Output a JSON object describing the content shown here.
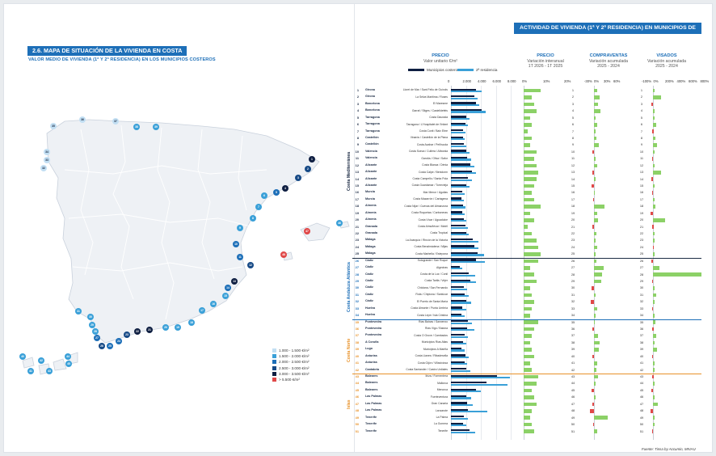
{
  "left_page": {
    "section_title": "2.6. MAPA DE SITUACIÓN DE LA VIVIENDA EN COSTA",
    "section_subtitle": "VALOR MEDIO DE VIVIENDA (1ª Y 2ª RESIDENCIA) EN LOS MUNICIPIOS COSTEROS",
    "map_legend": [
      {
        "label": "1.000 - 1.500 €/m²",
        "color": "#c2dff3"
      },
      {
        "label": "1.500 - 2.000 €/m²",
        "color": "#3aa0d8"
      },
      {
        "label": "2.000 - 2.500 €/m²",
        "color": "#1d6fb8"
      },
      {
        "label": "2.500 - 3.000 €/m²",
        "color": "#174a86"
      },
      {
        "label": "3.000 - 3.500 €/m²",
        "color": "#0f1f42"
      },
      {
        "label": "> 5.500 €/m²",
        "color": "#e04848"
      }
    ]
  },
  "right_page": {
    "title": "ACTIVIDAD DE VIVIENDA (1ª Y 2ª RESIDENCIA) EN MUNICIPIOS DE COSTA",
    "columns": {
      "precio": {
        "title": "PRECIO",
        "subtitle": "Valor unitario €/m²"
      },
      "precio_var": {
        "title": "PRECIO",
        "subtitle": "Variación interanual",
        "period": "1T 2026 - 1T 2025"
      },
      "compraventas": {
        "title": "COMPRAVENTAS",
        "subtitle": "Variación acumulada",
        "period": "2025 - 2024"
      },
      "visados": {
        "title": "VISADOS",
        "subtitle": "Variación acumulada",
        "period": "2025 - 2024"
      }
    },
    "legend": {
      "series1": "Municipios costeros",
      "series2": "2ª residencia"
    },
    "axes": {
      "precio": [
        "0",
        "2.000",
        "4.000",
        "6.000",
        "8.000"
      ],
      "precio_var": [
        "0%",
        "10%",
        "20%"
      ],
      "compraventas": [
        "-30%",
        "0%",
        "30%",
        "60%"
      ],
      "visados": [
        "-100%",
        "0%",
        "200%",
        "400%",
        "600%",
        "800%"
      ]
    },
    "regions": [
      {
        "name": "Costa Mediterránea",
        "color": "#1c2b44"
      },
      {
        "name": "Costa Andaluza Atlántica",
        "color": "#1d6fb8"
      },
      {
        "name": "Costa Norte",
        "color": "#e8922a"
      },
      {
        "name": "Islas",
        "color": "#e8922a"
      }
    ],
    "source": "Fuente: Tinsa by Accumin, MIVAU"
  },
  "chart_data": {
    "type": "bar",
    "rows": [
      {
        "n": 1,
        "prov": "Girona",
        "mun": "Lloret de Mar / Sant Feliu de Guíxols",
        "p1": 3400,
        "p2": 4100,
        "pv": 8,
        "cv": 6,
        "vis": 10
      },
      {
        "n": 2,
        "prov": "Girona",
        "mun": "La Selva Marítima / Roses",
        "p1": 3100,
        "p2": 3600,
        "pv": 4,
        "cv": 12,
        "vis": 130
      },
      {
        "n": 3,
        "prov": "Barcelona",
        "mun": "El Maresme",
        "p1": 3300,
        "p2": 3800,
        "pv": 5,
        "cv": 8,
        "vis": -30
      },
      {
        "n": 4,
        "prov": "Barcelona",
        "mun": "Garraf / Sitges / Castelldefels",
        "p1": 4100,
        "p2": 4600,
        "pv": 6,
        "cv": 14,
        "vis": 25
      },
      {
        "n": 5,
        "prov": "Tarragona",
        "mun": "Costa Daurada",
        "p1": 2100,
        "p2": 2500,
        "pv": 3,
        "cv": 4,
        "vis": 8
      },
      {
        "n": 6,
        "prov": "Tarragona",
        "mun": "Tarragona / L'Hospitalet de l'Infant",
        "p1": 1900,
        "p2": 2300,
        "pv": 4,
        "cv": 7,
        "vis": 60
      },
      {
        "n": 7,
        "prov": "Tarragona",
        "mun": "Costa Cunit / Baix Ebre",
        "p1": 1600,
        "p2": 1900,
        "pv": 2,
        "cv": 3,
        "vis": -10
      },
      {
        "n": 8,
        "prov": "Castellón",
        "mun": "Vinaròs / Castellón de la Plana",
        "p1": 1600,
        "p2": 1800,
        "pv": 4,
        "cv": 5,
        "vis": 40
      },
      {
        "n": 9,
        "prov": "Castellón",
        "mun": "Costa Azahar / Peñíscola",
        "p1": 1700,
        "p2": 2000,
        "pv": 3,
        "cv": 10,
        "vis": 70
      },
      {
        "n": 10,
        "prov": "Valencia",
        "mun": "Costa Sueca / Cullera / Alboraia",
        "p1": 2000,
        "p2": 2500,
        "pv": 6,
        "cv": -3,
        "vis": 20
      },
      {
        "n": 11,
        "prov": "Valencia",
        "mun": "Gandía / Oliva / Safor",
        "p1": 2200,
        "p2": 2700,
        "pv": 5,
        "cv": 4,
        "vis": -20
      },
      {
        "n": 12,
        "prov": "Alicante",
        "mun": "Costa Blanca / Dénia",
        "p1": 2600,
        "p2": 3100,
        "pv": 6,
        "cv": 6,
        "vis": 15
      },
      {
        "n": 13,
        "prov": "Alicante",
        "mun": "Costa Calpe / Benidorm",
        "p1": 2800,
        "p2": 3300,
        "pv": 7,
        "cv": -4,
        "vis": 140
      },
      {
        "n": 14,
        "prov": "Alicante",
        "mun": "Costa Campello / Santa Pola",
        "p1": 2300,
        "p2": 2800,
        "pv": 6,
        "cv": 3,
        "vis": -25
      },
      {
        "n": 15,
        "prov": "Alicante",
        "mun": "Costa Guardamar / Torrevieja",
        "p1": 2000,
        "p2": 2500,
        "pv": 5,
        "cv": -5,
        "vis": 30
      },
      {
        "n": 16,
        "prov": "Murcia",
        "mun": "Mar Menor / Águilas",
        "p1": 1500,
        "p2": 1800,
        "pv": 4,
        "cv": 2,
        "vis": -15
      },
      {
        "n": 17,
        "prov": "Murcia",
        "mun": "Costa Mazarrón / Cartagena",
        "p1": 1400,
        "p2": 1700,
        "pv": 5,
        "cv": -2,
        "vis": 5
      },
      {
        "n": 18,
        "prov": "Almería",
        "mun": "Costa Níjar / Cuevas del Almanzora",
        "p1": 1600,
        "p2": 1900,
        "pv": 8,
        "cv": 22,
        "vis": 35
      },
      {
        "n": 19,
        "prov": "Almería",
        "mun": "Costa Roquetas / Carboneras",
        "p1": 1500,
        "p2": 1800,
        "pv": 3,
        "cv": 6,
        "vis": -40
      },
      {
        "n": 20,
        "prov": "Almería",
        "mun": "Costa Vícar / Aguadulce",
        "p1": 1700,
        "p2": 2100,
        "pv": 5,
        "cv": 8,
        "vis": 200
      },
      {
        "n": 21,
        "prov": "Granada",
        "mun": "Costa Almuñécar / Motril",
        "p1": 1900,
        "p2": 2300,
        "pv": 2,
        "cv": -3,
        "vis": -10
      },
      {
        "n": 22,
        "prov": "Granada",
        "mun": "Costa Tropical",
        "p1": 2000,
        "p2": 2400,
        "pv": 4,
        "cv": 5,
        "vis": 20
      },
      {
        "n": 23,
        "prov": "Málaga",
        "mun": "La Axarquía / Rincón de la Victoria",
        "p1": 2900,
        "p2": 3700,
        "pv": 6,
        "cv": 3,
        "vis": 15
      },
      {
        "n": 24,
        "prov": "Málaga",
        "mun": "Costa Benalmádena / Mijas",
        "p1": 3100,
        "p2": 3700,
        "pv": 7,
        "cv": 6,
        "vis": -5
      },
      {
        "n": 25,
        "prov": "Málaga",
        "mun": "Costa Marbella / Estepona",
        "p1": 3600,
        "p2": 4400,
        "pv": 8,
        "cv": 4,
        "vis": 25
      },
      {
        "n": 26,
        "prov": "Cádiz",
        "mun": "Sotogrande / San Roque",
        "p1": 3300,
        "p2": 4500,
        "pv": 7,
        "cv": 5,
        "vis": -30
      },
      {
        "n": 27,
        "prov": "Cádiz",
        "mun": "Algeciras",
        "p1": 1200,
        "p2": 1500,
        "pv": 3,
        "cv": 20,
        "vis": 110
      },
      {
        "n": 28,
        "prov": "Cádiz",
        "mun": "Costa de la Luz / Conil",
        "p1": 2400,
        "p2": 3200,
        "pv": 5,
        "cv": 16,
        "vis": 820
      },
      {
        "n": 29,
        "prov": "Cádiz",
        "mun": "Costa Tarifa / Vejer",
        "p1": 2600,
        "p2": 3400,
        "pv": 6,
        "cv": 15,
        "vis": -20
      },
      {
        "n": 30,
        "prov": "Cádiz",
        "mun": "Chiclana / San Fernando",
        "p1": 1700,
        "p2": 2200,
        "pv": 3,
        "cv": -5,
        "vis": 10
      },
      {
        "n": 31,
        "prov": "Cádiz",
        "mun": "Rota / Chipiona / Sanlúcar",
        "p1": 1800,
        "p2": 2400,
        "pv": 4,
        "cv": 4,
        "vis": 55
      },
      {
        "n": 32,
        "prov": "Cádiz",
        "mun": "El Puerto de Santa María",
        "p1": 2000,
        "p2": 2700,
        "pv": 5,
        "cv": -7,
        "vis": 30
      },
      {
        "n": 33,
        "prov": "Huelva",
        "mun": "Costa Almonte / Punta Umbría",
        "p1": 1500,
        "p2": 2100,
        "pv": 4,
        "cv": 6,
        "vis": -15
      },
      {
        "n": 34,
        "prov": "Huelva",
        "mun": "Costa Lepe / Isla Cristina",
        "p1": 1400,
        "p2": 1800,
        "pv": 3,
        "cv": 3,
        "vis": 20
      },
      {
        "n": 35,
        "prov": "Pontevedra",
        "mun": "Rías Baixas / Sanxenxo",
        "p1": 2300,
        "p2": 2800,
        "pv": 7,
        "cv": 2,
        "vis": 35
      },
      {
        "n": 36,
        "prov": "Pontevedra",
        "mun": "Rías Vigo / Baiona",
        "p1": 2200,
        "p2": 3100,
        "pv": 5,
        "cv": -3,
        "vis": -10
      },
      {
        "n": 37,
        "prov": "Pontevedra",
        "mun": "Costa O Grove / Cambados",
        "p1": 1800,
        "p2": 2300,
        "pv": 4,
        "cv": 8,
        "vis": 55
      },
      {
        "n": 38,
        "prov": "A Coruña",
        "mun": "Municipios Rías Altas",
        "p1": 1600,
        "p2": 2100,
        "pv": 3,
        "cv": 12,
        "vis": 20
      },
      {
        "n": 39,
        "prov": "Lugo",
        "mun": "Municipios A Mariña",
        "p1": 1400,
        "p2": 1800,
        "pv": 4,
        "cv": 10,
        "vis": 70
      },
      {
        "n": 40,
        "prov": "Asturias",
        "mun": "Costa Llanes / Ribadesella",
        "p1": 1900,
        "p2": 2400,
        "pv": 5,
        "cv": -4,
        "vis": -20
      },
      {
        "n": 41,
        "prov": "Asturias",
        "mun": "Costa Gijón / Villaviciosa",
        "p1": 1800,
        "p2": 2200,
        "pv": 3,
        "cv": 6,
        "vis": 15
      },
      {
        "n": 42,
        "prov": "Cantabria",
        "mun": "Costa Santander / Castro Urdiales",
        "p1": 2100,
        "p2": 2600,
        "pv": 4,
        "cv": 5,
        "vis": 30
      },
      {
        "n": 43,
        "prov": "Baleares",
        "mun": "Ibiza / Formentera",
        "p1": 6200,
        "p2": 7900,
        "pv": 7,
        "cv": 9,
        "vis": -10
      },
      {
        "n": 44,
        "prov": "Baleares",
        "mun": "Mallorca",
        "p1": 4800,
        "p2": 7600,
        "pv": 6,
        "cv": 4,
        "vis": 25
      },
      {
        "n": 45,
        "prov": "Baleares",
        "mun": "Menorca",
        "p1": 3300,
        "p2": 4000,
        "pv": 4,
        "cv": -5,
        "vis": -30
      },
      {
        "n": 46,
        "prov": "Las Palmas",
        "mun": "Fuerteventura",
        "p1": 2100,
        "p2": 2700,
        "pv": 5,
        "cv": 3,
        "vis": 15
      },
      {
        "n": 47,
        "prov": "Las Palmas",
        "mun": "Gran Canaria",
        "p1": 2200,
        "p2": 2900,
        "pv": 6,
        "cv": -3,
        "vis": 80
      },
      {
        "n": 48,
        "prov": "Las Palmas",
        "mun": "Lanzarote",
        "p1": 2300,
        "p2": 4900,
        "pv": 4,
        "cv": -8,
        "vis": -40
      },
      {
        "n": 49,
        "prov": "Tenerife",
        "mun": "La Palma",
        "p1": 1700,
        "p2": 2300,
        "pv": 3,
        "cv": 28,
        "vis": 20
      },
      {
        "n": 50,
        "prov": "Tenerife",
        "mun": "La Gomera",
        "p1": 1600,
        "p2": 2100,
        "pv": 4,
        "cv": -2,
        "vis": 10
      },
      {
        "n": 51,
        "prov": "Tenerife",
        "mun": "Tenerife",
        "p1": 2500,
        "p2": 3200,
        "pv": 5,
        "cv": 6,
        "vis": -15
      }
    ]
  }
}
